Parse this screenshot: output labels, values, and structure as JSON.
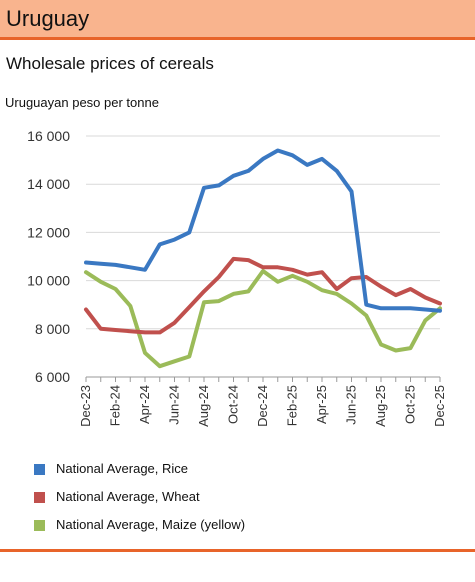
{
  "header": {
    "title": "Uruguay"
  },
  "colors": {
    "header_bg": "#f9b48e",
    "accent": "#e8642a"
  },
  "chart_data": {
    "type": "line",
    "title": "Wholesale prices of cereals",
    "ylabel": "Uruguayan peso per tonne",
    "xlabel": "",
    "ylim": [
      6000,
      16000
    ],
    "yticks": [
      6000,
      8000,
      10000,
      12000,
      14000,
      16000
    ],
    "ytick_labels": [
      "6 000",
      "8 000",
      "10 000",
      "12 000",
      "14 000",
      "16 000"
    ],
    "grid": "horizontal",
    "legend_position": "bottom",
    "categories": [
      "Dec-23",
      "Jan-24",
      "Feb-24",
      "Mar-24",
      "Apr-24",
      "May-24",
      "Jun-24",
      "Jul-24",
      "Aug-24",
      "Sep-24",
      "Oct-24",
      "Nov-24",
      "Dec-24",
      "Jan-25",
      "Feb-25",
      "Mar-25",
      "Apr-25",
      "May-25",
      "Jun-25",
      "Jul-25",
      "Aug-25",
      "Sep-25",
      "Oct-25",
      "Nov-25",
      "Dec-25"
    ],
    "xtick_labels": [
      "Dec-23",
      "",
      "Feb-24",
      "",
      "Apr-24",
      "",
      "Jun-24",
      "",
      "Aug-24",
      "",
      "Oct-24",
      "",
      "Dec-24",
      "",
      "Feb-25",
      "",
      "Apr-25",
      "",
      "Jun-25",
      "",
      "Aug-25",
      "",
      "Oct-25",
      "",
      "Dec-25"
    ],
    "series": [
      {
        "name": "National Average, Rice",
        "color": "#3a78c2",
        "values": [
          10750,
          10700,
          10650,
          10550,
          10450,
          11500,
          11700,
          12000,
          13850,
          13950,
          14350,
          14550,
          15050,
          15400,
          15200,
          14800,
          15050,
          14550,
          13700,
          9000,
          8850,
          8850,
          8850,
          8800,
          8750
        ]
      },
      {
        "name": "National Average, Wheat",
        "color": "#c0504d",
        "values": [
          8800,
          8000,
          7950,
          7900,
          7850,
          7850,
          8250,
          8900,
          9550,
          10150,
          10900,
          10850,
          10550,
          10550,
          10450,
          10250,
          10350,
          9650,
          10100,
          10150,
          9750,
          9400,
          9650,
          9300,
          9050
        ]
      },
      {
        "name": "National Average, Maize (yellow)",
        "color": "#9bbb59",
        "values": [
          10350,
          9950,
          9650,
          8950,
          7000,
          6450,
          6650,
          6850,
          9100,
          9150,
          9450,
          9550,
          10400,
          9950,
          10200,
          9950,
          9600,
          9450,
          9050,
          8550,
          7350,
          7100,
          7200,
          8350,
          8850
        ]
      }
    ]
  }
}
